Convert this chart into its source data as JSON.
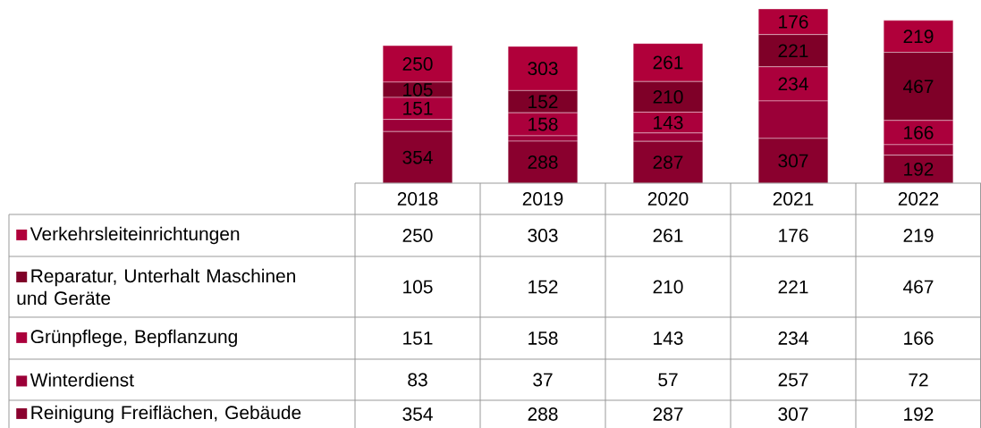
{
  "chart_data": {
    "type": "bar",
    "stacked": true,
    "data_labels": true,
    "legend": "bottom",
    "categories": [
      "2018",
      "2019",
      "2020",
      "2021",
      "2022"
    ],
    "series": [
      {
        "name": "Reinigung Freiflächen, Gebäude",
        "color": "#8a002e",
        "values": [
          354,
          288,
          287,
          307,
          192
        ],
        "value_labels": [
          "354",
          "288",
          "287",
          "307",
          "192"
        ]
      },
      {
        "name": "Winterdienst",
        "color": "#9b0038",
        "values": [
          83,
          37,
          57,
          257,
          72
        ]
      },
      {
        "name": "Grünpflege, Bepflanzung",
        "color": "#ab003c",
        "values": [
          151,
          158,
          143,
          234,
          166
        ],
        "value_labels": [
          "151",
          "158",
          "143",
          "234",
          "166"
        ]
      },
      {
        "name": "Reparatur, Unterhalt Maschinen und Geräte",
        "color": "#7f0028",
        "values": [
          105,
          152,
          210,
          221,
          467
        ],
        "value_labels": [
          "105",
          "152",
          "210",
          "221",
          "467"
        ]
      },
      {
        "name": "Verkehrsleiteinrichtungen",
        "color": "#b0003a",
        "values": [
          250,
          303,
          261,
          176,
          219
        ],
        "value_labels": [
          "250",
          "303",
          "261",
          "176",
          "219"
        ]
      }
    ]
  }
}
